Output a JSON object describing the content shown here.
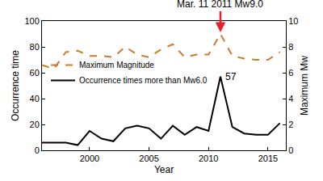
{
  "chart_data": {
    "type": "line",
    "x": [
      1996,
      1997,
      1998,
      1999,
      2000,
      2001,
      2002,
      2003,
      2004,
      2005,
      2006,
      2007,
      2008,
      2009,
      2010,
      2011,
      2012,
      2013,
      2014,
      2015,
      2016
    ],
    "series": [
      {
        "name": "Maximum Magnitude",
        "color": "#cc7a2e",
        "line_style": "dash",
        "axis": "y2",
        "values": [
          6.6,
          6.3,
          7.6,
          7.7,
          7.3,
          7.3,
          7.2,
          8.0,
          7.4,
          7.2,
          7.8,
          8.2,
          7.2,
          7.4,
          7.4,
          9.0,
          7.3,
          7.1,
          7.0,
          7.0,
          7.6
        ]
      },
      {
        "name": "Occurrence times more than Mw6.0",
        "color": "#000000",
        "line_style": "solid",
        "values": [
          6,
          6,
          6,
          4,
          15,
          9,
          7,
          17,
          19,
          17,
          9,
          19,
          12,
          18,
          15,
          57,
          18,
          13,
          12,
          12,
          21
        ]
      }
    ],
    "x_label": "Year",
    "y_label": "Occurrence time",
    "y2_label": "Maximum Mw",
    "xlim": [
      1996,
      2016.5
    ],
    "xticks": [
      2000,
      2005,
      2010,
      2015
    ],
    "ylim": [
      0,
      100
    ],
    "yticks": [
      0,
      20,
      40,
      60,
      80,
      100
    ],
    "y2lim": [
      0,
      10
    ],
    "y2ticks": [
      0,
      2,
      4,
      6,
      8,
      10
    ],
    "grid": false,
    "legend": "center left",
    "annotations": [
      {
        "text": "Mar. 11 2011 Mw9.0",
        "x": 2011,
        "y": 9.0,
        "axis": "y2",
        "color": "#e8202a"
      },
      {
        "text": "57",
        "x": 2011,
        "y": 57
      }
    ]
  }
}
